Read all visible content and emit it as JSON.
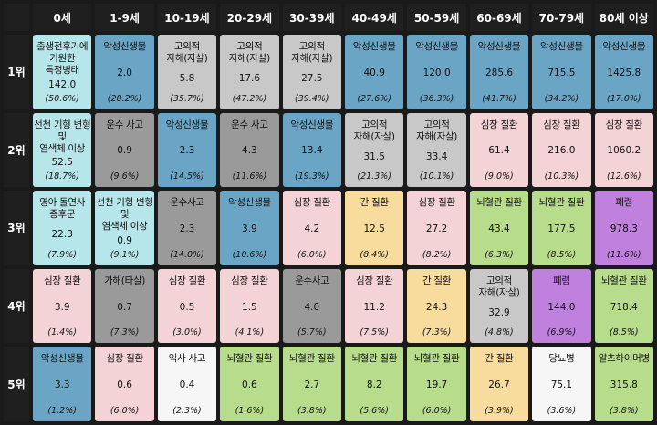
{
  "headers": [
    "0세",
    "1-9세",
    "10-19세",
    "20-29세",
    "30-39세",
    "40-49세",
    "50-59세",
    "60-69세",
    "70-79세",
    "80세 이상"
  ],
  "rows": [
    {
      "rank": "1위",
      "cells": [
        {
          "cause": "출생전후기에 기원한\n특정병태",
          "value": "142.0",
          "pct": "(50.6%)",
          "color": "cyan"
        },
        {
          "cause": "악성신생물",
          "value": "2.0",
          "pct": "(20.2%)",
          "color": "teal"
        },
        {
          "cause": "고의적\n자해(자살)",
          "value": "5.8",
          "pct": "(35.7%)",
          "color": "gray"
        },
        {
          "cause": "고의적\n자해(자살)",
          "value": "17.6",
          "pct": "(47.2%)",
          "color": "gray"
        },
        {
          "cause": "고의적\n자해(자살)",
          "value": "27.5",
          "pct": "(39.4%)",
          "color": "gray"
        },
        {
          "cause": "악성신생물",
          "value": "40.9",
          "pct": "(27.6%)",
          "color": "teal"
        },
        {
          "cause": "악성신생물",
          "value": "120.0",
          "pct": "(36.3%)",
          "color": "teal"
        },
        {
          "cause": "악성신생물",
          "value": "285.6",
          "pct": "(41.7%)",
          "color": "teal"
        },
        {
          "cause": "악성신생물",
          "value": "715.5",
          "pct": "(34.2%)",
          "color": "teal"
        },
        {
          "cause": "악성신생물",
          "value": "1425.8",
          "pct": "(17.0%)",
          "color": "teal"
        }
      ]
    },
    {
      "rank": "2위",
      "cells": [
        {
          "cause": "선천 기형 변형 및\n염색체 이상",
          "value": "52.5",
          "pct": "(18.7%)",
          "color": "cyan"
        },
        {
          "cause": "운수 사고",
          "value": "0.9",
          "pct": "(9.6%)",
          "color": "dgray"
        },
        {
          "cause": "악성신생물",
          "value": "2.3",
          "pct": "(14.5%)",
          "color": "teal"
        },
        {
          "cause": "운수 사고",
          "value": "4.3",
          "pct": "(11.6%)",
          "color": "dgray"
        },
        {
          "cause": "악성신생물",
          "value": "13.4",
          "pct": "(19.3%)",
          "color": "teal"
        },
        {
          "cause": "고의적\n자해(자살)",
          "value": "31.5",
          "pct": "(21.3%)",
          "color": "gray"
        },
        {
          "cause": "고의적\n자해(자살)",
          "value": "33.4",
          "pct": "(10.1%)",
          "color": "gray"
        },
        {
          "cause": "심장 질환",
          "value": "61.4",
          "pct": "(9.0%)",
          "color": "pink"
        },
        {
          "cause": "심장 질환",
          "value": "216.0",
          "pct": "(10.3%)",
          "color": "pink"
        },
        {
          "cause": "심장 질환",
          "value": "1060.2",
          "pct": "(12.6%)",
          "color": "pink"
        }
      ]
    },
    {
      "rank": "3위",
      "cells": [
        {
          "cause": "영아 돌연사\n증후군",
          "value": "22.3",
          "pct": "(7.9%)",
          "color": "cyan"
        },
        {
          "cause": "선천 기형 변형 및\n염색체 이상",
          "value": "0.9",
          "pct": "(9.1%)",
          "color": "cyan"
        },
        {
          "cause": "운수사고",
          "value": "2.3",
          "pct": "(14.0%)",
          "color": "dgray"
        },
        {
          "cause": "악성신생물",
          "value": "3.9",
          "pct": "(10.6%)",
          "color": "teal"
        },
        {
          "cause": "심장 질환",
          "value": "4.2",
          "pct": "(6.0%)",
          "color": "pink"
        },
        {
          "cause": "간 질환",
          "value": "12.5",
          "pct": "(8.4%)",
          "color": "yellow"
        },
        {
          "cause": "심장 질환",
          "value": "27.2",
          "pct": "(8.2%)",
          "color": "pink"
        },
        {
          "cause": "뇌혈관 질환",
          "value": "43.4",
          "pct": "(6.3%)",
          "color": "green"
        },
        {
          "cause": "뇌혈관 질환",
          "value": "177.5",
          "pct": "(8.5%)",
          "color": "green"
        },
        {
          "cause": "폐렴",
          "value": "978.3",
          "pct": "(11.6%)",
          "color": "purple"
        }
      ]
    },
    {
      "rank": "4위",
      "cells": [
        {
          "cause": "심장 질환",
          "value": "3.9",
          "pct": "(1.4%)",
          "color": "pink"
        },
        {
          "cause": "가해(타살)",
          "value": "0.7",
          "pct": "(7.3%)",
          "color": "dgray"
        },
        {
          "cause": "심장 질환",
          "value": "0.5",
          "pct": "(3.0%)",
          "color": "pink"
        },
        {
          "cause": "심장 질환",
          "value": "1.5",
          "pct": "(4.1%)",
          "color": "pink"
        },
        {
          "cause": "운수사고",
          "value": "4.0",
          "pct": "(5.7%)",
          "color": "dgray"
        },
        {
          "cause": "심장 질환",
          "value": "11.2",
          "pct": "(7.5%)",
          "color": "pink"
        },
        {
          "cause": "간 질환",
          "value": "24.3",
          "pct": "(7.3%)",
          "color": "yellow"
        },
        {
          "cause": "고의적\n자해(자살)",
          "value": "32.9",
          "pct": "(4.8%)",
          "color": "gray"
        },
        {
          "cause": "폐렴",
          "value": "144.0",
          "pct": "(6.9%)",
          "color": "purple"
        },
        {
          "cause": "뇌혈관 질환",
          "value": "718.4",
          "pct": "(8.5%)",
          "color": "green"
        }
      ]
    },
    {
      "rank": "5위",
      "cells": [
        {
          "cause": "악성신생물",
          "value": "3.3",
          "pct": "(1.2%)",
          "color": "teal"
        },
        {
          "cause": "심장 질환",
          "value": "0.6",
          "pct": "(6.0%)",
          "color": "pink"
        },
        {
          "cause": "익사 사고",
          "value": "0.4",
          "pct": "(2.3%)",
          "color": "white"
        },
        {
          "cause": "뇌혈관 질환",
          "value": "0.6",
          "pct": "(1.6%)",
          "color": "green"
        },
        {
          "cause": "뇌혈관 질환",
          "value": "2.7",
          "pct": "(3.8%)",
          "color": "green"
        },
        {
          "cause": "뇌혈관 질환",
          "value": "8.2",
          "pct": "(5.6%)",
          "color": "green"
        },
        {
          "cause": "뇌혈관 질환",
          "value": "19.7",
          "pct": "(6.0%)",
          "color": "green"
        },
        {
          "cause": "간 질환",
          "value": "26.7",
          "pct": "(3.9%)",
          "color": "yellow"
        },
        {
          "cause": "당뇨병",
          "value": "75.1",
          "pct": "(3.6%)",
          "color": "white"
        },
        {
          "cause": "알츠하이머병",
          "value": "315.8",
          "pct": "(3.8%)",
          "color": "green"
        }
      ]
    }
  ],
  "palette": {
    "teal": "#6aa5c6",
    "gray": "#c8c8c8",
    "dgray": "#9a9a9a",
    "cyan": "#b7e6ea",
    "pink": "#f3d3d5",
    "white": "#f6f6f6",
    "yellow": "#f8dc9e",
    "green": "#b7dd8c",
    "purple": "#bf81dd"
  }
}
